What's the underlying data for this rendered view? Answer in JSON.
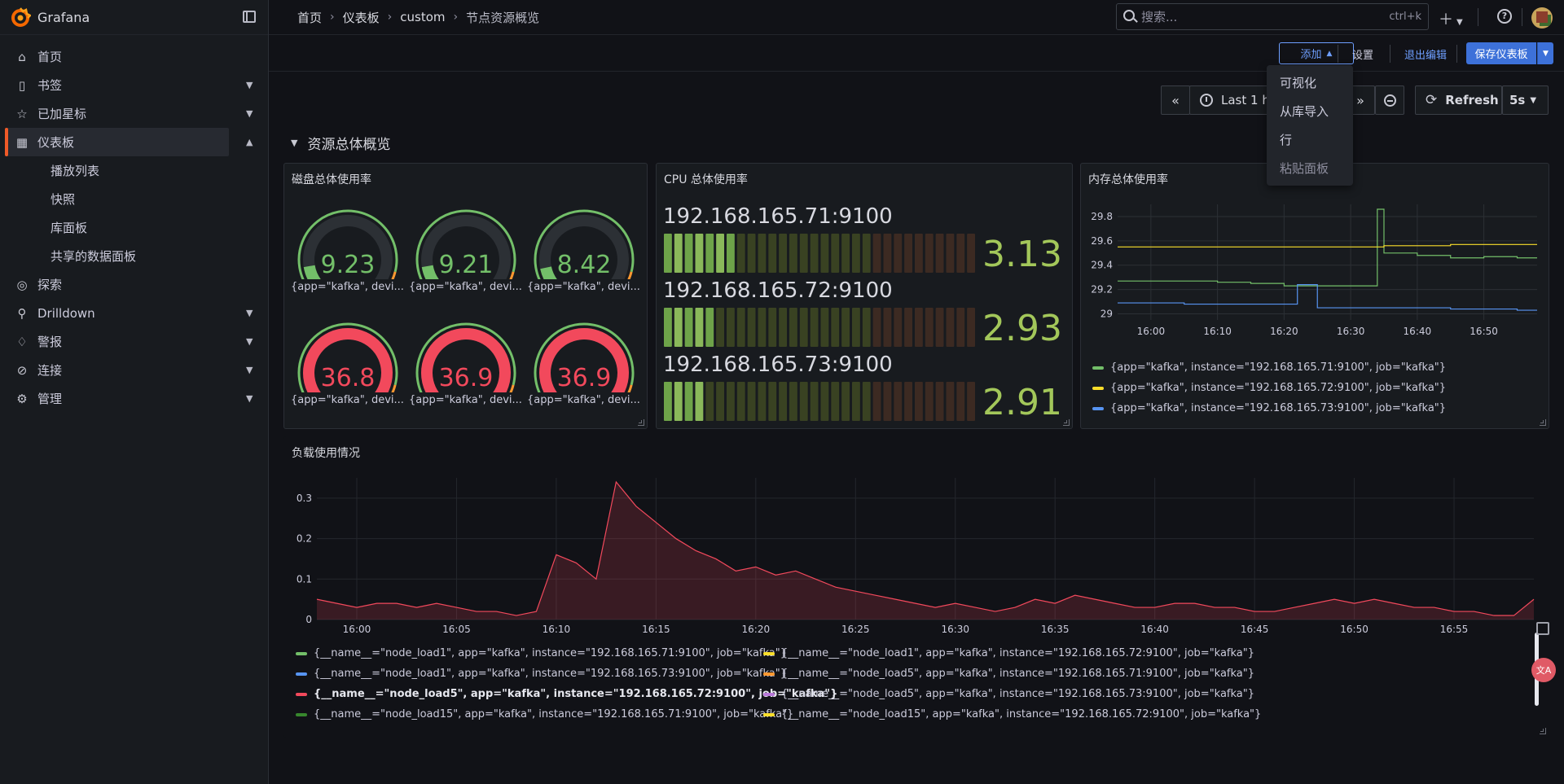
{
  "app": {
    "name": "Grafana"
  },
  "sidebar": {
    "items": [
      {
        "label": "首页",
        "icon": "home-icon"
      },
      {
        "label": "书签",
        "icon": "bookmark-icon"
      },
      {
        "label": "已加星标",
        "icon": "star-icon"
      },
      {
        "label": "仪表板",
        "icon": "dashboards-icon"
      },
      {
        "label": "探索",
        "icon": "compass-icon"
      },
      {
        "label": "Drilldown",
        "icon": "drilldown-icon"
      },
      {
        "label": "警报",
        "icon": "bell-icon"
      },
      {
        "label": "连接",
        "icon": "connections-icon"
      },
      {
        "label": "管理",
        "icon": "gear-icon"
      }
    ],
    "subitems": [
      "播放列表",
      "快照",
      "库面板",
      "共享的数据面板"
    ]
  },
  "breadcrumb": [
    "首页",
    "仪表板",
    "custom",
    "节点资源概览"
  ],
  "search": {
    "placeholder": "搜索...",
    "shortcut": "ctrl+k"
  },
  "editbar": {
    "add": "添加",
    "settings": "设置",
    "exit": "退出编辑",
    "save": "保存仪表板"
  },
  "add_menu": [
    "可视化",
    "从库导入",
    "行",
    "粘贴面板"
  ],
  "time": {
    "range": "Last 1 h",
    "refresh": "Refresh",
    "interval": "5s"
  },
  "row": {
    "title": "资源总体概览"
  },
  "disk_panel": {
    "title": "磁盘总体使用率",
    "gauges": [
      {
        "value": "9.23",
        "fraction": 0.092,
        "label": "{app=\"kafka\", devi...",
        "color": "#73bf69"
      },
      {
        "value": "9.21",
        "fraction": 0.092,
        "label": "{app=\"kafka\", devi...",
        "color": "#73bf69"
      },
      {
        "value": "8.42",
        "fraction": 0.084,
        "label": "{app=\"kafka\", devi...",
        "color": "#73bf69"
      },
      {
        "value": "36.8",
        "fraction": 0.368,
        "label": "{app=\"kafka\", devi...",
        "color": "#f2495c"
      },
      {
        "value": "36.9",
        "fraction": 0.369,
        "label": "{app=\"kafka\", devi...",
        "color": "#f2495c"
      },
      {
        "value": "36.9",
        "fraction": 0.369,
        "label": "{app=\"kafka\", devi...",
        "color": "#f2495c"
      }
    ]
  },
  "cpu_panel": {
    "title": "CPU 总体使用率",
    "bars": [
      {
        "label": "192.168.165.71:9100",
        "value": "3.13",
        "lit_segments": 7
      },
      {
        "label": "192.168.165.72:9100",
        "value": "2.93",
        "lit_segments": 5
      },
      {
        "label": "192.168.165.73:9100",
        "value": "2.91",
        "lit_segments": 4
      }
    ],
    "segments_total": 30
  },
  "mem_panel": {
    "title": "内存总体使用率",
    "chart_data": {
      "type": "line",
      "x": [
        "15:55",
        "16:00",
        "16:05",
        "16:10",
        "16:15",
        "16:20",
        "16:22",
        "16:25",
        "16:30",
        "16:33",
        "16:34",
        "16:35",
        "16:40",
        "16:45",
        "16:50",
        "16:55",
        "16:58"
      ],
      "xticks": [
        "16:00",
        "16:10",
        "16:20",
        "16:30",
        "16:40",
        "16:50"
      ],
      "yticks": [
        "29",
        "29.2",
        "29.4",
        "29.6",
        "29.8"
      ],
      "ylim": [
        28.95,
        29.9
      ],
      "series": [
        {
          "name": "{app=\"kafka\", instance=\"192.168.165.71:9100\", job=\"kafka\"}",
          "color": "#73bf69",
          "values": [
            29.27,
            29.27,
            29.27,
            29.26,
            29.25,
            29.23,
            29.23,
            29.23,
            29.23,
            29.23,
            29.86,
            29.5,
            29.48,
            29.46,
            29.47,
            29.46,
            29.46
          ]
        },
        {
          "name": "{app=\"kafka\", instance=\"192.168.165.72:9100\", job=\"kafka\"}",
          "color": "#fade2a",
          "values": [
            29.55,
            29.55,
            29.55,
            29.55,
            29.55,
            29.55,
            29.55,
            29.55,
            29.55,
            29.55,
            29.55,
            29.56,
            29.56,
            29.57,
            29.57,
            29.57,
            29.57
          ]
        },
        {
          "name": "{app=\"kafka\", instance=\"192.168.165.73:9100\", job=\"kafka\"}",
          "color": "#5794f2",
          "values": [
            29.09,
            29.09,
            29.08,
            29.08,
            29.08,
            29.08,
            29.24,
            29.05,
            29.05,
            29.05,
            29.05,
            29.05,
            29.05,
            29.04,
            29.04,
            29.03,
            29.03
          ]
        }
      ]
    }
  },
  "load_panel": {
    "title": "负载使用情况",
    "chart_data": {
      "type": "area",
      "xticks": [
        "16:00",
        "16:05",
        "16:10",
        "16:15",
        "16:20",
        "16:25",
        "16:30",
        "16:35",
        "16:40",
        "16:45",
        "16:50",
        "16:55"
      ],
      "yticks": [
        "0",
        "0.1",
        "0.2",
        "0.3"
      ],
      "ylim": [
        0,
        0.35
      ],
      "x_minutes": [
        0,
        1,
        2,
        3,
        4,
        5,
        6,
        7,
        8,
        9,
        10,
        11,
        12,
        13,
        14,
        15,
        16,
        17,
        18,
        19,
        20,
        21,
        22,
        23,
        24,
        25,
        26,
        27,
        28,
        29,
        30,
        31,
        32,
        33,
        34,
        35,
        36,
        37,
        38,
        39,
        40,
        41,
        42,
        43,
        44,
        45,
        46,
        47,
        48,
        49,
        50,
        51,
        52,
        53,
        54,
        55,
        56,
        57,
        58,
        59,
        60,
        61
      ],
      "values": [
        0.05,
        0.04,
        0.03,
        0.04,
        0.04,
        0.03,
        0.04,
        0.03,
        0.02,
        0.02,
        0.01,
        0.02,
        0.16,
        0.14,
        0.1,
        0.34,
        0.28,
        0.24,
        0.2,
        0.17,
        0.15,
        0.12,
        0.13,
        0.11,
        0.12,
        0.1,
        0.08,
        0.07,
        0.06,
        0.05,
        0.04,
        0.03,
        0.04,
        0.03,
        0.02,
        0.03,
        0.05,
        0.04,
        0.06,
        0.05,
        0.04,
        0.03,
        0.03,
        0.04,
        0.04,
        0.03,
        0.03,
        0.02,
        0.02,
        0.03,
        0.04,
        0.05,
        0.04,
        0.05,
        0.04,
        0.03,
        0.03,
        0.02,
        0.02,
        0.01,
        0.01,
        0.05
      ],
      "color": "#f2495c",
      "legend": [
        {
          "name": "{__name__=\"node_load1\", app=\"kafka\", instance=\"192.168.165.71:9100\", job=\"kafka\"}",
          "color": "#73bf69"
        },
        {
          "name": "{__name__=\"node_load1\", app=\"kafka\", instance=\"192.168.165.72:9100\", job=\"kafka\"}",
          "color": "#fade2a"
        },
        {
          "name": "{__name__=\"node_load1\", app=\"kafka\", instance=\"192.168.165.73:9100\", job=\"kafka\"}",
          "color": "#5794f2"
        },
        {
          "name": "{__name__=\"node_load5\", app=\"kafka\", instance=\"192.168.165.71:9100\", job=\"kafka\"}",
          "color": "#ff9830"
        },
        {
          "name": "{__name__=\"node_load5\", app=\"kafka\", instance=\"192.168.165.72:9100\", job=\"kafka\"}",
          "color": "#f2495c"
        },
        {
          "name": "{__name__=\"node_load5\", app=\"kafka\", instance=\"192.168.165.73:9100\", job=\"kafka\"}",
          "color": "#b877d9"
        },
        {
          "name": "{__name__=\"node_load15\", app=\"kafka\", instance=\"192.168.165.71:9100\", job=\"kafka\"}",
          "color": "#37872d"
        },
        {
          "name": "{__name__=\"node_load15\", app=\"kafka\", instance=\"192.168.165.72:9100\", job=\"kafka\"}",
          "color": "#fade2a"
        }
      ]
    }
  }
}
